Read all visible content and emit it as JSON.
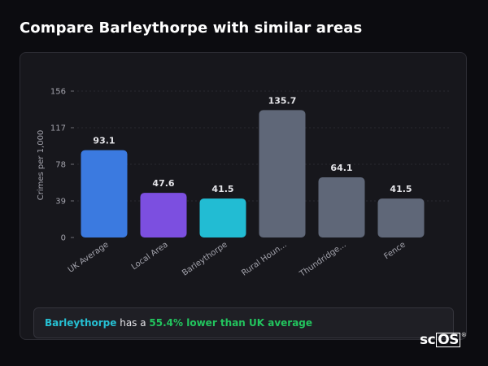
{
  "page": {
    "title": "Compare Barleythorpe with similar areas"
  },
  "chart_data": {
    "type": "bar",
    "title": "",
    "ylabel": "Crimes per 1,000",
    "xlabel": "",
    "ylim": [
      0,
      156
    ],
    "yticks": [
      0,
      39,
      78,
      117,
      156
    ],
    "grid": "horizontal-dashed",
    "categories": [
      "UK Average",
      "Local Area",
      "Barleythorpe",
      "Rural Houn...",
      "Thundridge...",
      "Fence"
    ],
    "values": [
      93.1,
      47.6,
      41.5,
      135.7,
      64.1,
      41.5
    ],
    "value_labels": [
      "93.1",
      "47.6",
      "41.5",
      "135.7",
      "64.1",
      "41.5"
    ],
    "colors": [
      "#3b7ae0",
      "#7c4fe0",
      "#22bcd3",
      "#5f6778",
      "#5f6778",
      "#5f6778"
    ]
  },
  "callout": {
    "area": "Barleythorpe",
    "connector": " has a ",
    "stat": "55.4% lower than UK average"
  },
  "brand": {
    "prefix": "sc",
    "boxed": "OS",
    "mark": "®"
  }
}
